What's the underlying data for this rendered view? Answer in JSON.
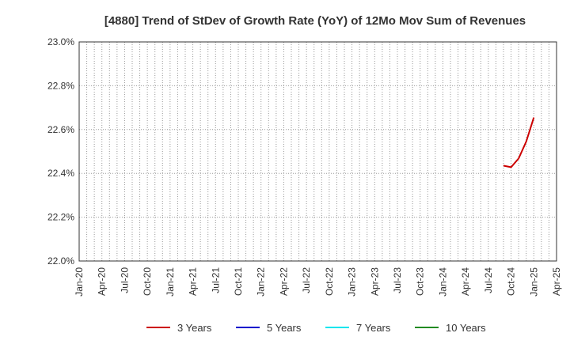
{
  "chart_data": {
    "type": "line",
    "title": "[4880]  Trend of StDev of Growth Rate (YoY) of 12Mo Mov Sum of Revenues",
    "xlabel": "",
    "ylabel": "",
    "y_unit": "%",
    "ylim": [
      22.0,
      23.0
    ],
    "y_ticks": [
      22.0,
      22.2,
      22.4,
      22.6,
      22.8,
      23.0
    ],
    "y_tick_labels": [
      "22.0%",
      "22.2%",
      "22.4%",
      "22.6%",
      "22.8%",
      "23.0%"
    ],
    "xlim": [
      "2020-01",
      "2025-04"
    ],
    "x_ticks": [
      "2020-01",
      "2020-04",
      "2020-07",
      "2020-10",
      "2021-01",
      "2021-04",
      "2021-07",
      "2021-10",
      "2022-01",
      "2022-04",
      "2022-07",
      "2022-10",
      "2023-01",
      "2023-04",
      "2023-07",
      "2023-10",
      "2024-01",
      "2024-04",
      "2024-07",
      "2024-10",
      "2025-01",
      "2025-04"
    ],
    "x_tick_labels": [
      "Jan-20",
      "Apr-20",
      "Jul-20",
      "Oct-20",
      "Jan-21",
      "Apr-21",
      "Jul-21",
      "Oct-21",
      "Jan-22",
      "Apr-22",
      "Jul-22",
      "Oct-22",
      "Jan-23",
      "Apr-23",
      "Jul-23",
      "Oct-23",
      "Jan-24",
      "Apr-24",
      "Jul-24",
      "Oct-24",
      "Jan-25",
      "Apr-25"
    ],
    "grid": true,
    "grid_style": "dotted",
    "legend_position": "bottom",
    "series": [
      {
        "name": "3 Years",
        "color": "#cc0000",
        "points": [
          {
            "x": "2024-09",
            "y": 22.435
          },
          {
            "x": "2024-10",
            "y": 22.428
          },
          {
            "x": "2024-11",
            "y": 22.468
          },
          {
            "x": "2024-12",
            "y": 22.545
          },
          {
            "x": "2025-01",
            "y": 22.655
          }
        ]
      },
      {
        "name": "5 Years",
        "color": "#0000cc",
        "points": []
      },
      {
        "name": "7 Years",
        "color": "#00e5ee",
        "points": []
      },
      {
        "name": "10 Years",
        "color": "#228b22",
        "points": []
      }
    ]
  }
}
